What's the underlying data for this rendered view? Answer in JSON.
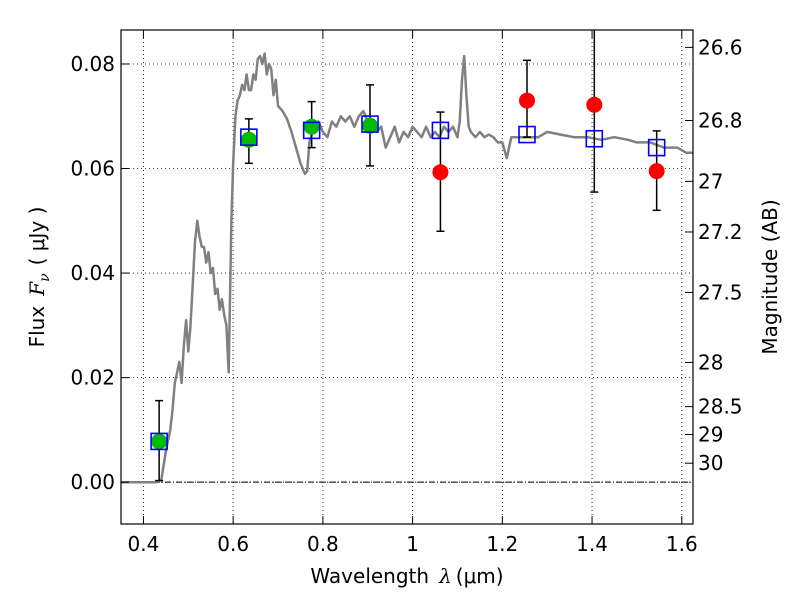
{
  "chart_data": {
    "type": "scatter",
    "xlabel": {
      "prefix": "Wavelength",
      "symbol": "λ",
      "unit": "(μm)"
    },
    "ylabel": {
      "prefix": "Flux",
      "symbol": "F",
      "subscript": "ν",
      "unit": "( μJy )"
    },
    "y2label": "Magnitude (AB)",
    "xlim": [
      0.35,
      1.625
    ],
    "ylim": [
      -0.008,
      0.0865
    ],
    "x_ticks": [
      {
        "value": 0.4,
        "label": "0.4"
      },
      {
        "value": 0.6,
        "label": "0.6"
      },
      {
        "value": 0.8,
        "label": "0.8"
      },
      {
        "value": 1.0,
        "label": "1"
      },
      {
        "value": 1.2,
        "label": "1.2"
      },
      {
        "value": 1.4,
        "label": "1.4"
      },
      {
        "value": 1.6,
        "label": "1.6"
      }
    ],
    "y_ticks": [
      {
        "value": 0.0,
        "label": "0.00"
      },
      {
        "value": 0.02,
        "label": "0.02"
      },
      {
        "value": 0.04,
        "label": "0.04"
      },
      {
        "value": 0.06,
        "label": "0.06"
      },
      {
        "value": 0.08,
        "label": "0.08"
      }
    ],
    "y2_ticks": [
      {
        "value": 26.6,
        "label": "26.6"
      },
      {
        "value": 26.8,
        "label": "26.8"
      },
      {
        "value": 27.0,
        "label": "27"
      },
      {
        "value": 27.2,
        "label": "27.2"
      },
      {
        "value": 27.5,
        "label": "27.5"
      },
      {
        "value": 28.0,
        "label": "28"
      },
      {
        "value": 28.5,
        "label": "28.5"
      },
      {
        "value": 29.0,
        "label": "29"
      },
      {
        "value": 30.0,
        "label": "30"
      }
    ],
    "grid": true,
    "zero_line": true,
    "colors": {
      "model": "#808080",
      "model_photometry": "#0000ff",
      "detection": "#00bb00",
      "upper": "#ff0000",
      "errorbar": "#000000"
    },
    "model_sed": [
      [
        0.35,
        0.0
      ],
      [
        0.43,
        0.0
      ],
      [
        0.44,
        0.0005
      ],
      [
        0.45,
        0.006
      ],
      [
        0.46,
        0.01
      ],
      [
        0.465,
        0.014
      ],
      [
        0.47,
        0.019
      ],
      [
        0.475,
        0.021
      ],
      [
        0.48,
        0.023
      ],
      [
        0.485,
        0.019
      ],
      [
        0.49,
        0.026
      ],
      [
        0.495,
        0.031
      ],
      [
        0.5,
        0.025
      ],
      [
        0.505,
        0.03
      ],
      [
        0.51,
        0.038
      ],
      [
        0.515,
        0.046
      ],
      [
        0.52,
        0.05
      ],
      [
        0.525,
        0.047
      ],
      [
        0.53,
        0.045
      ],
      [
        0.535,
        0.045
      ],
      [
        0.54,
        0.042
      ],
      [
        0.545,
        0.044
      ],
      [
        0.55,
        0.04
      ],
      [
        0.555,
        0.041
      ],
      [
        0.56,
        0.036
      ],
      [
        0.565,
        0.037
      ],
      [
        0.57,
        0.033
      ],
      [
        0.575,
        0.035
      ],
      [
        0.58,
        0.032
      ],
      [
        0.585,
        0.03
      ],
      [
        0.59,
        0.021
      ],
      [
        0.593,
        0.035
      ],
      [
        0.596,
        0.05
      ],
      [
        0.6,
        0.061
      ],
      [
        0.605,
        0.07
      ],
      [
        0.61,
        0.073
      ],
      [
        0.615,
        0.074
      ],
      [
        0.62,
        0.076
      ],
      [
        0.625,
        0.075
      ],
      [
        0.63,
        0.078
      ],
      [
        0.635,
        0.075
      ],
      [
        0.64,
        0.075
      ],
      [
        0.645,
        0.078
      ],
      [
        0.65,
        0.077
      ],
      [
        0.655,
        0.081
      ],
      [
        0.66,
        0.0815
      ],
      [
        0.665,
        0.08
      ],
      [
        0.67,
        0.082
      ],
      [
        0.675,
        0.078
      ],
      [
        0.68,
        0.08
      ],
      [
        0.685,
        0.079
      ],
      [
        0.69,
        0.074
      ],
      [
        0.695,
        0.077
      ],
      [
        0.7,
        0.072
      ],
      [
        0.71,
        0.071
      ],
      [
        0.72,
        0.0695
      ],
      [
        0.73,
        0.067
      ],
      [
        0.74,
        0.064
      ],
      [
        0.75,
        0.061
      ],
      [
        0.76,
        0.059
      ],
      [
        0.765,
        0.0595
      ],
      [
        0.77,
        0.065
      ],
      [
        0.78,
        0.068
      ],
      [
        0.79,
        0.069
      ],
      [
        0.8,
        0.067
      ],
      [
        0.81,
        0.066
      ],
      [
        0.82,
        0.069
      ],
      [
        0.83,
        0.068
      ],
      [
        0.84,
        0.07
      ],
      [
        0.85,
        0.069
      ],
      [
        0.86,
        0.07
      ],
      [
        0.87,
        0.068
      ],
      [
        0.88,
        0.07
      ],
      [
        0.89,
        0.071
      ],
      [
        0.9,
        0.069
      ],
      [
        0.91,
        0.068
      ],
      [
        0.92,
        0.067
      ],
      [
        0.93,
        0.068
      ],
      [
        0.94,
        0.064
      ],
      [
        0.95,
        0.066
      ],
      [
        0.96,
        0.068
      ],
      [
        0.97,
        0.065
      ],
      [
        0.98,
        0.067
      ],
      [
        0.99,
        0.066
      ],
      [
        1.0,
        0.068
      ],
      [
        1.01,
        0.067
      ],
      [
        1.02,
        0.066
      ],
      [
        1.03,
        0.068
      ],
      [
        1.04,
        0.066
      ],
      [
        1.05,
        0.067
      ],
      [
        1.06,
        0.066
      ],
      [
        1.07,
        0.068
      ],
      [
        1.08,
        0.067
      ],
      [
        1.09,
        0.068
      ],
      [
        1.1,
        0.066
      ],
      [
        1.105,
        0.069
      ],
      [
        1.11,
        0.077
      ],
      [
        1.115,
        0.0815
      ],
      [
        1.12,
        0.074
      ],
      [
        1.125,
        0.068
      ],
      [
        1.13,
        0.067
      ],
      [
        1.14,
        0.066
      ],
      [
        1.15,
        0.067
      ],
      [
        1.16,
        0.066
      ],
      [
        1.17,
        0.0665
      ],
      [
        1.18,
        0.066
      ],
      [
        1.19,
        0.065
      ],
      [
        1.2,
        0.065
      ],
      [
        1.21,
        0.062
      ],
      [
        1.22,
        0.066
      ],
      [
        1.23,
        0.066
      ],
      [
        1.25,
        0.066
      ],
      [
        1.28,
        0.066
      ],
      [
        1.3,
        0.067
      ],
      [
        1.33,
        0.0665
      ],
      [
        1.36,
        0.066
      ],
      [
        1.39,
        0.066
      ],
      [
        1.42,
        0.0655
      ],
      [
        1.45,
        0.066
      ],
      [
        1.48,
        0.0655
      ],
      [
        1.5,
        0.065
      ],
      [
        1.53,
        0.065
      ],
      [
        1.56,
        0.064
      ],
      [
        1.59,
        0.064
      ],
      [
        1.61,
        0.063
      ],
      [
        1.625,
        0.063
      ]
    ],
    "model_photometry": [
      {
        "x": 0.435,
        "y": 0.0078
      },
      {
        "x": 0.635,
        "y": 0.066
      },
      {
        "x": 0.775,
        "y": 0.0673
      },
      {
        "x": 0.905,
        "y": 0.0685
      },
      {
        "x": 1.062,
        "y": 0.0673
      },
      {
        "x": 1.255,
        "y": 0.0665
      },
      {
        "x": 1.405,
        "y": 0.0657
      },
      {
        "x": 1.544,
        "y": 0.064
      }
    ],
    "observed": [
      {
        "x": 0.435,
        "y": 0.0078,
        "yerr_low": 0.0075,
        "yerr_high": 0.0078,
        "kind": "detection"
      },
      {
        "x": 0.635,
        "y": 0.0655,
        "yerr_low": 0.0045,
        "yerr_high": 0.004,
        "kind": "detection"
      },
      {
        "x": 0.775,
        "y": 0.068,
        "yerr_low": 0.004,
        "yerr_high": 0.0048,
        "kind": "detection"
      },
      {
        "x": 0.905,
        "y": 0.0682,
        "yerr_low": 0.0077,
        "yerr_high": 0.0078,
        "kind": "detection"
      },
      {
        "x": 1.062,
        "y": 0.0593,
        "yerr_low": 0.0113,
        "yerr_high": 0.0115,
        "kind": "upper"
      },
      {
        "x": 1.255,
        "y": 0.073,
        "yerr_low": 0.007,
        "yerr_high": 0.0077,
        "kind": "upper"
      },
      {
        "x": 1.405,
        "y": 0.0722,
        "yerr_low": 0.0167,
        "yerr_high": 0.016,
        "kind": "upper"
      },
      {
        "x": 1.544,
        "y": 0.0595,
        "yerr_low": 0.0075,
        "yerr_high": 0.0077,
        "kind": "upper"
      }
    ]
  }
}
